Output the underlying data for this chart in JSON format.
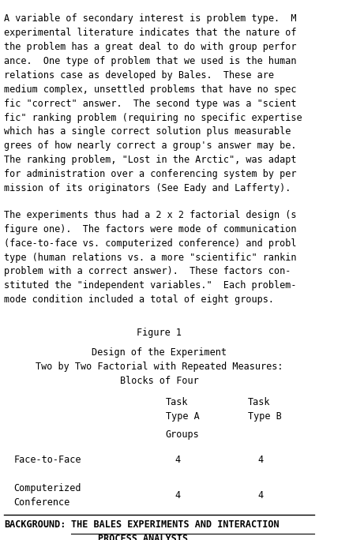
{
  "body_text_paragraphs": [
    "A variable of secondary interest is problem type.  M",
    "experimental literature indicates that the nature of",
    "the problem has a great deal to do with group perfor",
    "ance.  One type of problem that we used is the human",
    "relations case as developed by Bales.  These are",
    "medium complex, unsettled problems that have no spec",
    "fic \"correct\" answer.  The second type was a \"scient",
    "fic\" ranking problem (requiring no specific expertise",
    "which has a single correct solution plus measurable",
    "grees of how nearly correct a group's answer may be.",
    "The ranking problem, \"Lost in the Arctic\", was adapt",
    "for administration over a conferencing system by per",
    "mission of its originators (See Eady and Lafferty)."
  ],
  "body_text_paragraphs2": [
    "The experiments thus had a 2 x 2 factorial design (s",
    "figure one).  The factors were mode of communication",
    "(face-to-face vs. computerized conference) and probl",
    "type (human relations vs. a more \"scientific\" rankin",
    "problem with a correct answer).  These factors con-",
    "stituted the \"independent variables.\"  Each problem-",
    "mode condition included a total of eight groups."
  ],
  "figure_label": "Figure 1",
  "title_line1": "Design of the Experiment",
  "title_line2": "Two by Two Factorial with Repeated Measures:",
  "title_line3": "Blocks of Four",
  "col1_header_line1": "Task",
  "col1_header_line2": "Type A",
  "col2_header_line1": "Task",
  "col2_header_line2": "Type B",
  "groups_label": "Groups",
  "row1_label": "Face-to-Face",
  "row1_val1": "4",
  "row1_val2": "4",
  "row2_label_line1": "Computerized",
  "row2_label_line2": "Conference",
  "row2_val1": "4",
  "row2_val2": "4",
  "footer_bold": "BACKGROUND:",
  "footer_underline": "THE BALES EXPERIMENTS AND INTERACTION",
  "footer_underline2": "PROCESS ANALYSIS",
  "bg_color": "#ffffff",
  "text_color": "#000000",
  "font_size": 8.5,
  "font_family": "monospace"
}
